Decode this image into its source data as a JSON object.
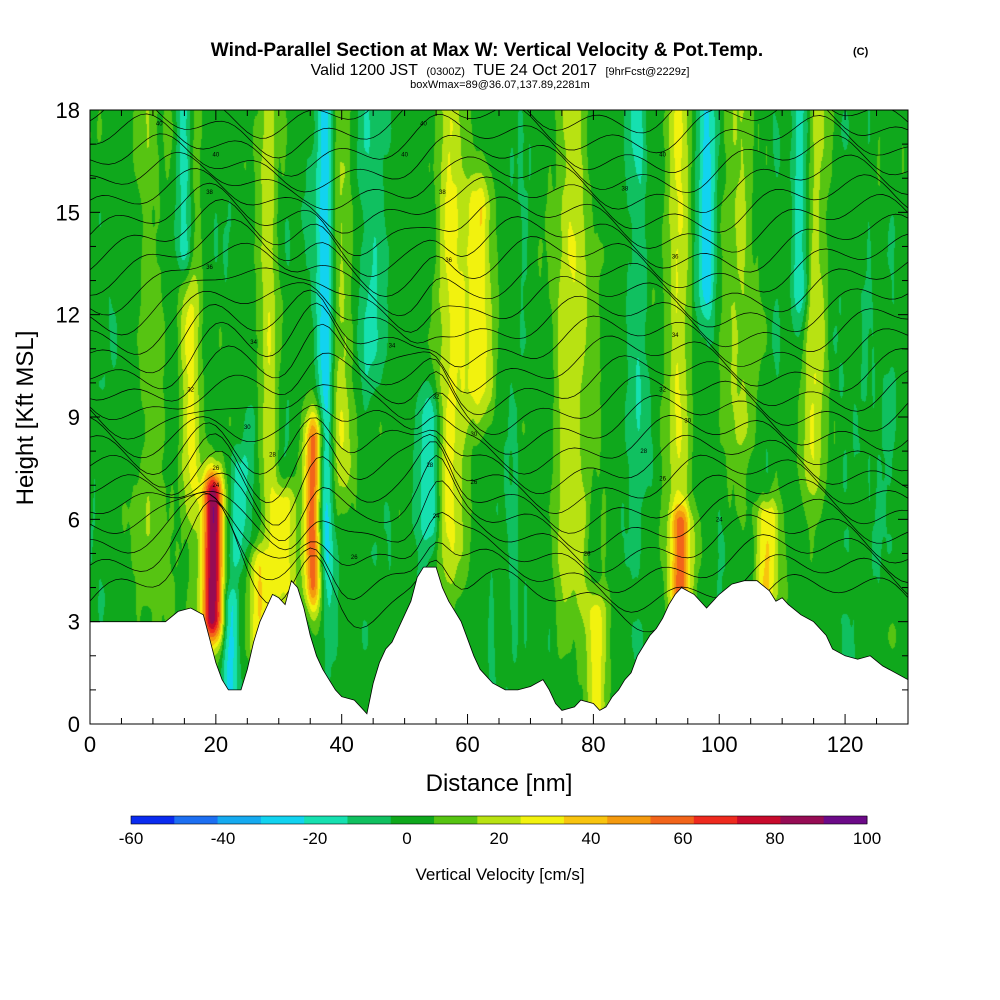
{
  "header": {
    "title": "Wind-Parallel Section at Max W: Vertical Velocity & Pot.Temp.",
    "title_mark": "(C)",
    "sub_valid": "Valid 1200 JST",
    "sub_utc": "(0300Z)",
    "sub_date": "TUE 24 Oct 2017",
    "sub_fcst": "[9hrFcst@2229z]",
    "sub_box": "boxWmax=89@36.07,137.89,2281m"
  },
  "chart_data": {
    "type": "heatmap",
    "title": "Wind-Parallel Section at Max W: Vertical Velocity & Pot.Temp.",
    "xlabel": "Distance [nm]",
    "ylabel": "Height [Kft MSL]",
    "xlim": [
      0,
      130
    ],
    "ylim": [
      0,
      18
    ],
    "x_ticks": [
      "0",
      "20",
      "40",
      "60",
      "80",
      "100",
      "120"
    ],
    "y_ticks": [
      "0",
      "3",
      "6",
      "9",
      "12",
      "15",
      "18"
    ],
    "colorbar": {
      "label": "Vertical Velocity [cm/s]",
      "ticks": [
        "-60",
        "-40",
        "-20",
        "0",
        "20",
        "40",
        "60",
        "80",
        "100"
      ],
      "bounds": [
        -60,
        -50,
        -40,
        -30,
        -20,
        -10,
        0,
        10,
        20,
        30,
        40,
        50,
        60,
        70,
        80,
        90,
        100
      ],
      "colors": [
        "#0a2bf0",
        "#1d6ff2",
        "#15aaf0",
        "#12d3f0",
        "#16e0b0",
        "#10c060",
        "#0fa81c",
        "#56c412",
        "#b8e212",
        "#f2f20e",
        "#f8c40e",
        "#f49a0e",
        "#f2641a",
        "#ee2a1e",
        "#c80a2c",
        "#960c54",
        "#6c0a88"
      ]
    },
    "terrain": [
      [
        0,
        3.0
      ],
      [
        3,
        3.0
      ],
      [
        6,
        3.0
      ],
      [
        9,
        3.0
      ],
      [
        12,
        3.0
      ],
      [
        14,
        3.3
      ],
      [
        16,
        3.4
      ],
      [
        18,
        3.2
      ],
      [
        19,
        2.5
      ],
      [
        20,
        1.8
      ],
      [
        21,
        1.3
      ],
      [
        22,
        1.0
      ],
      [
        24,
        1.0
      ],
      [
        25,
        1.6
      ],
      [
        26,
        2.4
      ],
      [
        27,
        3.0
      ],
      [
        28,
        3.4
      ],
      [
        29,
        3.8
      ],
      [
        30,
        3.7
      ],
      [
        31,
        3.5
      ],
      [
        32,
        4.2
      ],
      [
        33,
        4.0
      ],
      [
        34,
        3.4
      ],
      [
        35,
        2.6
      ],
      [
        36,
        2.0
      ],
      [
        37,
        1.6
      ],
      [
        38,
        1.3
      ],
      [
        39,
        1.0
      ],
      [
        40,
        0.8
      ],
      [
        42,
        0.7
      ],
      [
        43,
        0.5
      ],
      [
        44,
        0.3
      ],
      [
        45,
        1.2
      ],
      [
        46,
        1.8
      ],
      [
        47,
        2.2
      ],
      [
        48,
        2.4
      ],
      [
        49,
        2.8
      ],
      [
        50,
        3.2
      ],
      [
        51,
        3.6
      ],
      [
        52,
        4.3
      ],
      [
        53,
        4.6
      ],
      [
        55,
        4.6
      ],
      [
        56,
        4.0
      ],
      [
        57,
        3.6
      ],
      [
        58,
        3.3
      ],
      [
        59,
        3.0
      ],
      [
        60,
        2.5
      ],
      [
        61,
        2.0
      ],
      [
        62,
        1.6
      ],
      [
        63,
        1.4
      ],
      [
        64,
        1.2
      ],
      [
        66,
        1.0
      ],
      [
        68,
        1.0
      ],
      [
        70,
        1.1
      ],
      [
        72,
        1.3
      ],
      [
        73,
        1.0
      ],
      [
        74,
        0.6
      ],
      [
        75,
        0.4
      ],
      [
        77,
        0.5
      ],
      [
        78,
        0.7
      ],
      [
        80,
        0.6
      ],
      [
        81,
        0.4
      ],
      [
        82,
        0.5
      ],
      [
        83,
        0.8
      ],
      [
        84,
        1.0
      ],
      [
        85,
        1.3
      ],
      [
        86,
        1.5
      ],
      [
        87,
        2.0
      ],
      [
        88,
        2.3
      ],
      [
        89,
        2.6
      ],
      [
        90,
        2.8
      ],
      [
        91,
        3.1
      ],
      [
        92,
        3.5
      ],
      [
        93,
        3.8
      ],
      [
        94,
        4.0
      ],
      [
        96,
        3.8
      ],
      [
        98,
        3.4
      ],
      [
        100,
        3.8
      ],
      [
        102,
        4.1
      ],
      [
        104,
        4.2
      ],
      [
        106,
        4.2
      ],
      [
        108,
        3.9
      ],
      [
        109,
        3.6
      ],
      [
        110,
        3.7
      ],
      [
        111,
        3.5
      ],
      [
        113,
        3.2
      ],
      [
        115,
        3.0
      ],
      [
        117,
        2.6
      ],
      [
        118,
        2.2
      ],
      [
        120,
        2.0
      ],
      [
        122,
        1.9
      ],
      [
        124,
        2.0
      ],
      [
        126,
        1.7
      ],
      [
        128,
        1.5
      ],
      [
        130,
        1.3
      ]
    ],
    "updrafts": [
      {
        "x": 19.5,
        "z0": 3.2,
        "z1": 6.6,
        "sx": 1.2,
        "peak": 93
      },
      {
        "x": 35.5,
        "z0": 4.2,
        "z1": 8.2,
        "sx": 1.0,
        "peak": 62
      },
      {
        "x": 31.0,
        "z0": 4.0,
        "z1": 6.4,
        "sx": 1.2,
        "peak": 34
      },
      {
        "x": 26.5,
        "z0": 2.4,
        "z1": 4.6,
        "sx": 1.2,
        "peak": 32
      },
      {
        "x": 16.0,
        "z0": 8.0,
        "z1": 18.0,
        "sx": 1.2,
        "peak": 27
      },
      {
        "x": 28.5,
        "z0": 5.0,
        "z1": 18.0,
        "sx": 1.0,
        "peak": 22
      },
      {
        "x": 39.5,
        "z0": 8.0,
        "z1": 18.0,
        "sx": 1.5,
        "peak": 24
      },
      {
        "x": 57.5,
        "z0": 6.0,
        "z1": 18.0,
        "sx": 1.6,
        "peak": 27
      },
      {
        "x": 62.0,
        "z0": 10.0,
        "z1": 15.0,
        "sx": 1.6,
        "peak": 32
      },
      {
        "x": 76.5,
        "z0": 5.0,
        "z1": 18.0,
        "sx": 2.0,
        "peak": 23
      },
      {
        "x": 93.5,
        "z0": 3.8,
        "z1": 18.0,
        "sx": 1.3,
        "peak": 25
      },
      {
        "x": 94.0,
        "z0": 4.0,
        "z1": 5.8,
        "sx": 1.2,
        "peak": 42
      },
      {
        "x": 107.5,
        "z0": 4.0,
        "z1": 6.0,
        "sx": 1.3,
        "peak": 38
      },
      {
        "x": 115.0,
        "z0": 8.0,
        "z1": 18.0,
        "sx": 1.4,
        "peak": 22
      },
      {
        "x": 80.5,
        "z0": 0.6,
        "z1": 3.2,
        "sx": 1.2,
        "peak": 30
      },
      {
        "x": 103.0,
        "z0": 9.0,
        "z1": 18.0,
        "sx": 2.0,
        "peak": 15
      },
      {
        "x": 9.5,
        "z0": 6.0,
        "z1": 18.0,
        "sx": 2.0,
        "peak": 12
      }
    ],
    "downdrafts": [
      {
        "x": 15.2,
        "z0": 14.0,
        "z1": 18.0,
        "sx": 1.0,
        "peak": -42
      },
      {
        "x": 22.5,
        "z0": 1.2,
        "z1": 3.4,
        "sx": 1.0,
        "peak": -26
      },
      {
        "x": 23.5,
        "z0": 5.0,
        "z1": 7.5,
        "sx": 1.1,
        "peak": -22
      },
      {
        "x": 37.5,
        "z0": 6.0,
        "z1": 18.0,
        "sx": 1.0,
        "peak": -40
      },
      {
        "x": 54.0,
        "z0": 6.0,
        "z1": 9.0,
        "sx": 1.2,
        "peak": -22
      },
      {
        "x": 98.0,
        "z0": 13.0,
        "z1": 18.0,
        "sx": 1.0,
        "peak": -28
      },
      {
        "x": 113.0,
        "z0": 13.0,
        "z1": 18.0,
        "sx": 1.0,
        "peak": -30
      },
      {
        "x": 44.5,
        "z0": 11.0,
        "z1": 18.0,
        "sx": 1.3,
        "peak": -12
      },
      {
        "x": 87.0,
        "z0": 9.0,
        "z1": 18.0,
        "sx": 1.3,
        "peak": -12
      },
      {
        "x": 120.0,
        "z0": 2.0,
        "z1": 3.0,
        "sx": 1.0,
        "peak": -12
      }
    ],
    "theta_labels": [
      {
        "x": 11,
        "z": 17.6,
        "text": "40"
      },
      {
        "x": 20,
        "z": 16.7,
        "text": "40"
      },
      {
        "x": 19,
        "z": 15.6,
        "text": "38"
      },
      {
        "x": 19,
        "z": 13.4,
        "text": "36"
      },
      {
        "x": 26,
        "z": 11.2,
        "text": "34"
      },
      {
        "x": 16,
        "z": 9.8,
        "text": "32"
      },
      {
        "x": 25,
        "z": 8.7,
        "text": "30"
      },
      {
        "x": 29,
        "z": 7.9,
        "text": "28"
      },
      {
        "x": 20,
        "z": 7.5,
        "text": "26"
      },
      {
        "x": 20,
        "z": 7.0,
        "text": "24"
      },
      {
        "x": 53,
        "z": 17.6,
        "text": "40"
      },
      {
        "x": 50,
        "z": 16.7,
        "text": "40"
      },
      {
        "x": 56,
        "z": 15.6,
        "text": "38"
      },
      {
        "x": 57,
        "z": 13.6,
        "text": "36"
      },
      {
        "x": 48,
        "z": 11.1,
        "text": "34"
      },
      {
        "x": 55,
        "z": 9.6,
        "text": "32"
      },
      {
        "x": 61,
        "z": 8.5,
        "text": "30"
      },
      {
        "x": 54,
        "z": 7.6,
        "text": "28"
      },
      {
        "x": 61,
        "z": 7.1,
        "text": "26"
      },
      {
        "x": 55,
        "z": 6.1,
        "text": "24"
      },
      {
        "x": 42,
        "z": 4.9,
        "text": "26"
      },
      {
        "x": 79,
        "z": 5.0,
        "text": "28"
      },
      {
        "x": 91,
        "z": 16.7,
        "text": "40"
      },
      {
        "x": 85,
        "z": 15.7,
        "text": "38"
      },
      {
        "x": 93,
        "z": 13.7,
        "text": "36"
      },
      {
        "x": 93,
        "z": 11.4,
        "text": "34"
      },
      {
        "x": 91,
        "z": 9.8,
        "text": "32"
      },
      {
        "x": 95,
        "z": 8.9,
        "text": "30"
      },
      {
        "x": 88,
        "z": 8.0,
        "text": "28"
      },
      {
        "x": 91,
        "z": 7.2,
        "text": "26"
      },
      {
        "x": 100,
        "z": 6.0,
        "text": "24"
      }
    ]
  }
}
